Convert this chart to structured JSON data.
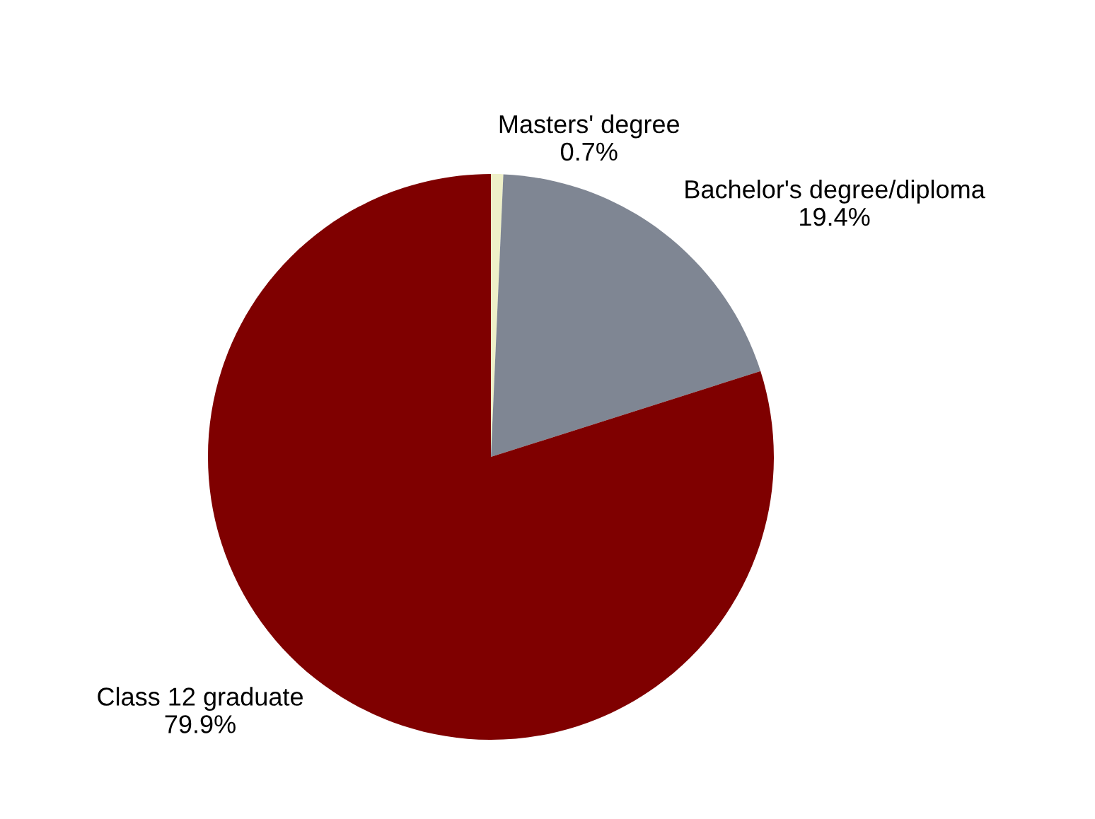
{
  "chart_data": {
    "type": "pie",
    "categories": [
      "Masters' degree",
      "Bachelor's degree/diploma",
      "Class 12 graduate"
    ],
    "values": [
      0.7,
      19.4,
      79.9
    ],
    "value_labels": [
      "0.7%",
      "19.4%",
      "79.9%"
    ],
    "colors": [
      "#eef0c8",
      "#7f8693",
      "#7f0000"
    ],
    "legend": false
  }
}
